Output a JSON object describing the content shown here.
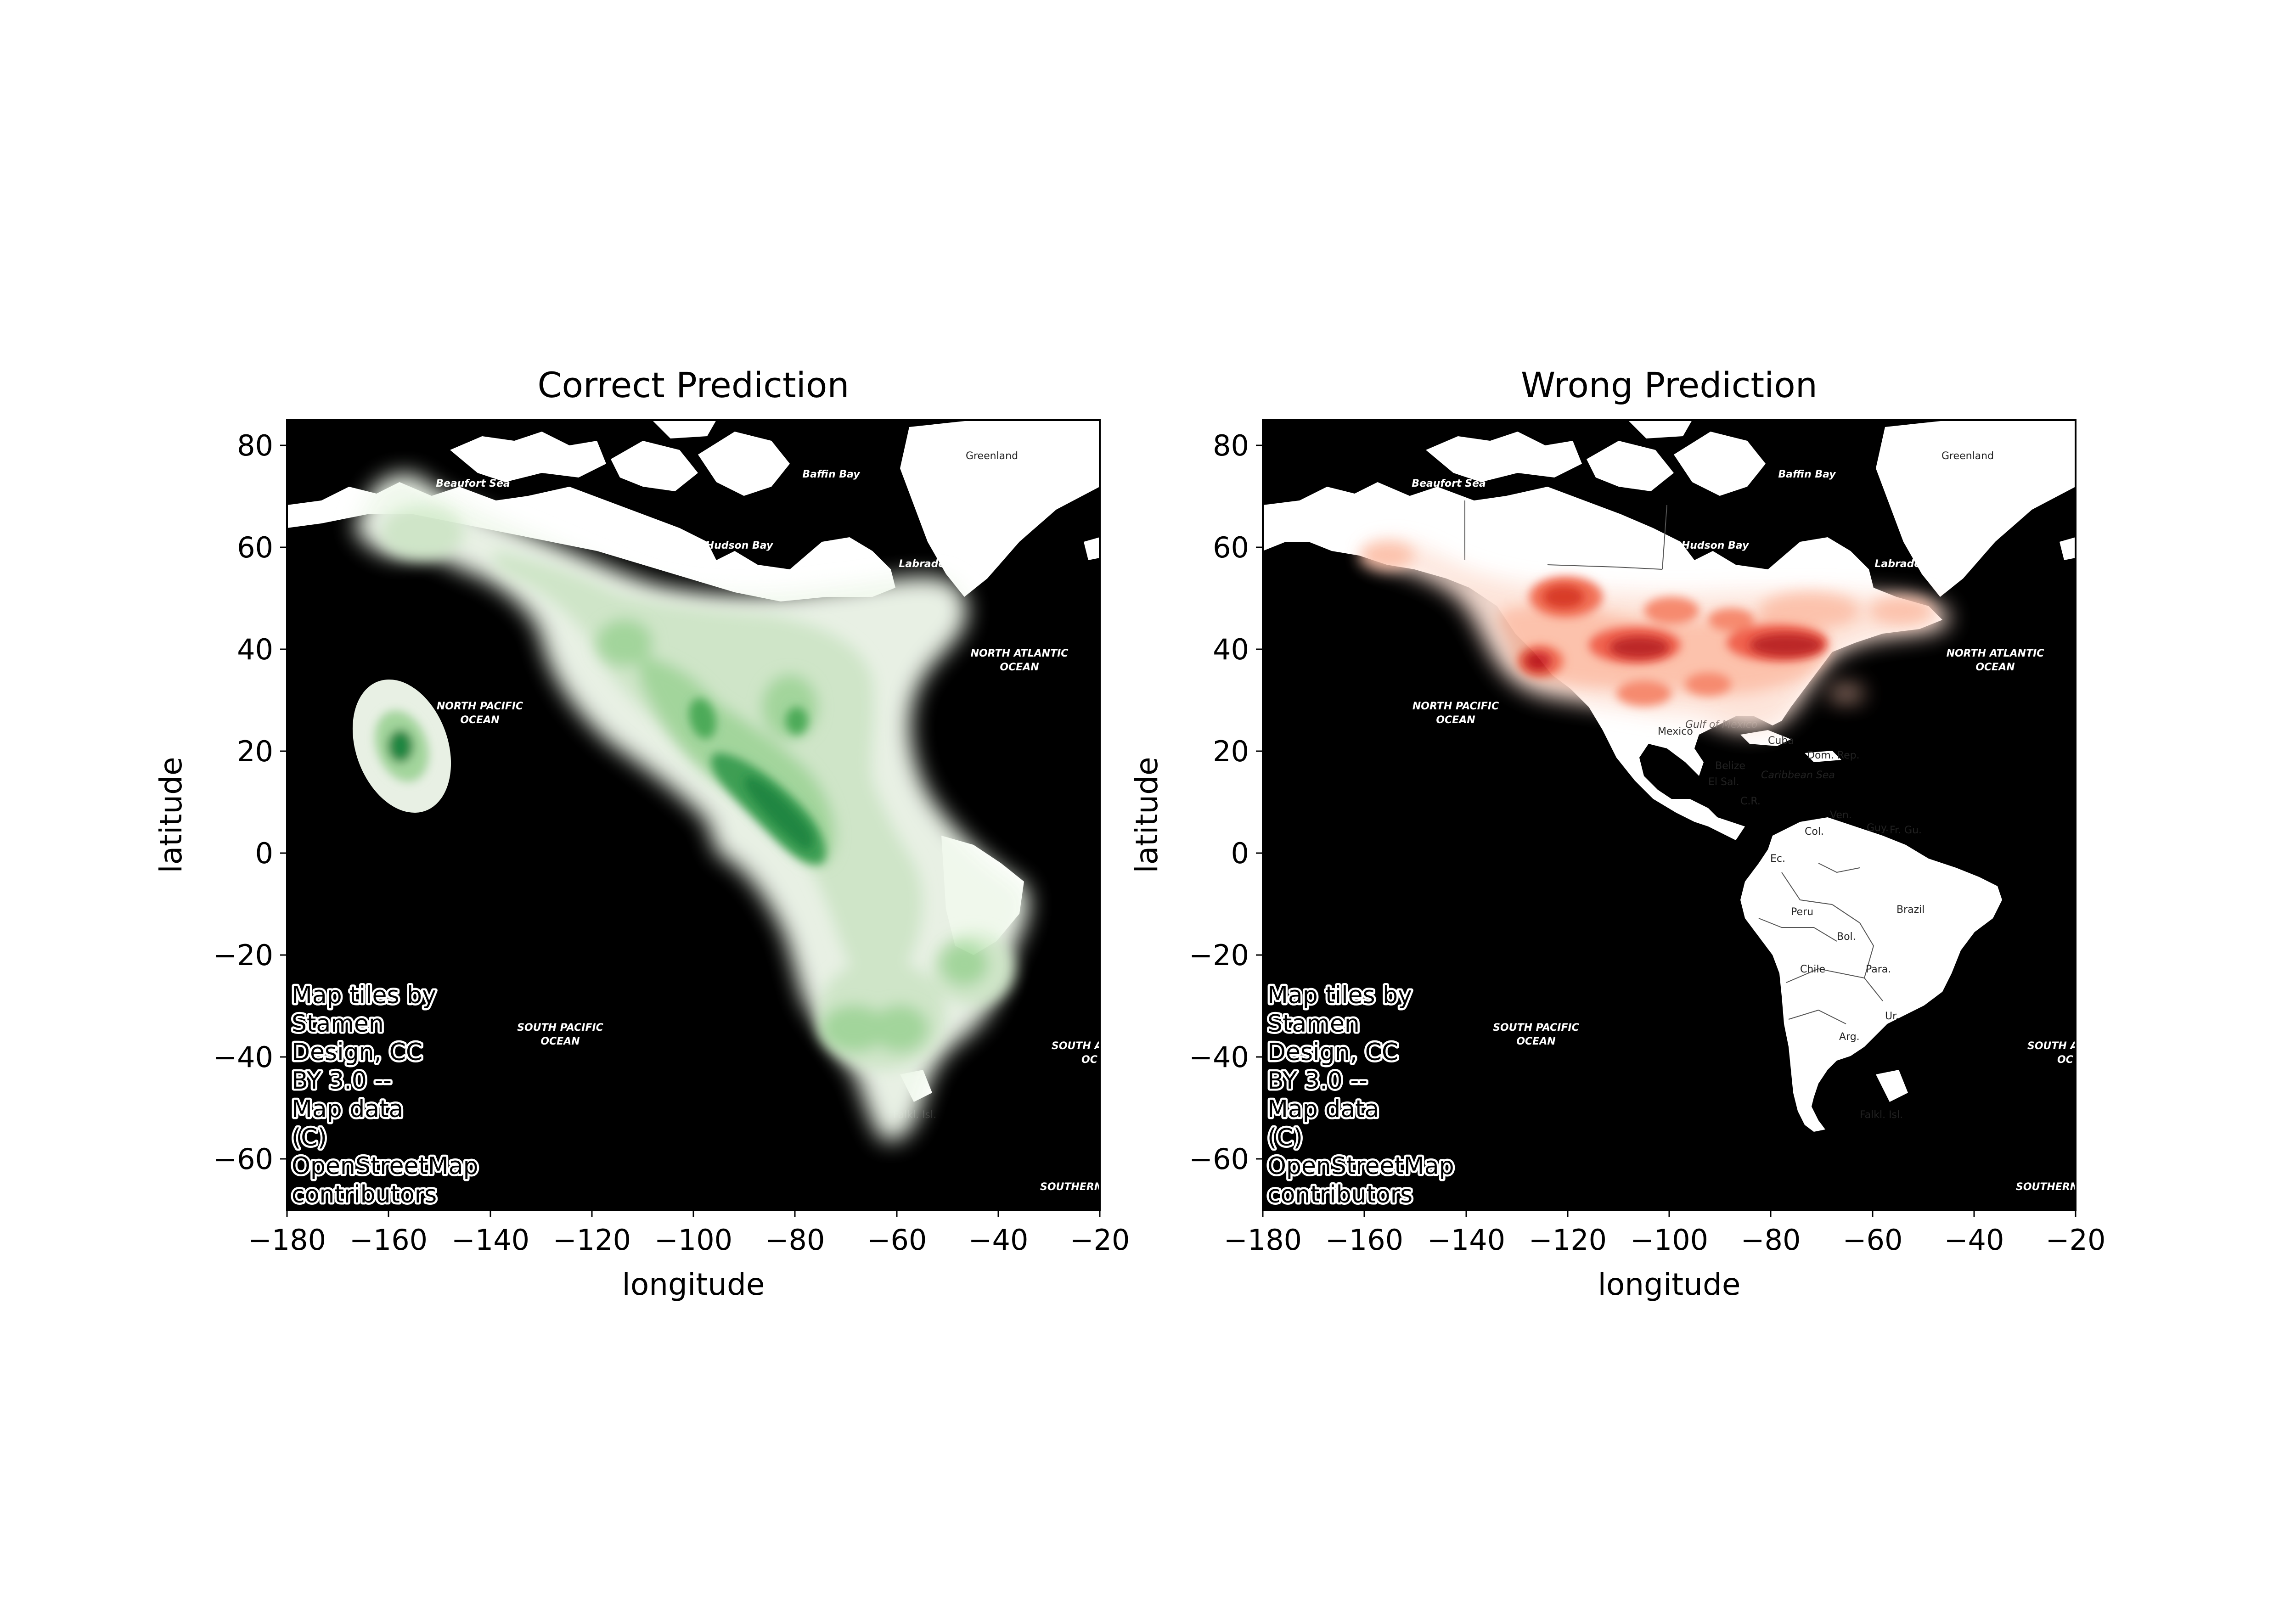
{
  "chart_data": [
    {
      "type": "heatmap",
      "subtype": "kde-density-over-map",
      "title": "Correct Prediction",
      "xlabel": "longitude",
      "ylabel": "latitude",
      "xlim": [
        -180,
        -20
      ],
      "ylim": [
        -70,
        85
      ],
      "xticks": [
        -180,
        -160,
        -140,
        -120,
        -100,
        -80,
        -60,
        -40,
        -20
      ],
      "yticks": [
        -60,
        -40,
        -20,
        0,
        20,
        40,
        60,
        80
      ],
      "xtick_labels": [
        "−180",
        "−160",
        "−140",
        "−120",
        "−100",
        "−80",
        "−60",
        "−40",
        "−20"
      ],
      "ytick_labels": [
        "−60",
        "−40",
        "−20",
        "0",
        "20",
        "40",
        "60",
        "80"
      ],
      "colormap": "Greens",
      "color": "#238b45",
      "grid": false,
      "density_peaks": [
        {
          "lon": -157,
          "lat": 20,
          "level": 0.85
        },
        {
          "lon": -85,
          "lat": 10,
          "level": 1.0
        },
        {
          "lon": -98,
          "lat": 28,
          "level": 0.75
        },
        {
          "lon": -80,
          "lat": 26,
          "level": 0.7
        },
        {
          "lon": -110,
          "lat": 38,
          "level": 0.45
        },
        {
          "lon": -95,
          "lat": 42,
          "level": 0.45
        },
        {
          "lon": -70,
          "lat": 35,
          "level": 0.35
        },
        {
          "lon": -65,
          "lat": -15,
          "level": 0.45
        },
        {
          "lon": -70,
          "lat": -33,
          "level": 0.5
        },
        {
          "lon": -55,
          "lat": -33,
          "level": 0.45
        },
        {
          "lon": -47,
          "lat": -23,
          "level": 0.4
        },
        {
          "lon": -150,
          "lat": 62,
          "level": 0.3
        },
        {
          "lon": -160,
          "lat": 65,
          "level": 0.25
        }
      ],
      "attribution": [
        "Map tiles by",
        "Stamen",
        "Design, CC",
        "BY 3.0 --",
        "Map data",
        "(C)",
        "OpenStreetMap",
        "contributors"
      ]
    },
    {
      "type": "heatmap",
      "subtype": "kde-density-over-map",
      "title": "Wrong Prediction",
      "xlabel": "longitude",
      "ylabel": "latitude",
      "xlim": [
        -180,
        -20
      ],
      "ylim": [
        -70,
        85
      ],
      "xticks": [
        -180,
        -160,
        -140,
        -120,
        -100,
        -80,
        -60,
        -40,
        -20
      ],
      "yticks": [
        -60,
        -40,
        -20,
        0,
        20,
        40,
        60,
        80
      ],
      "xtick_labels": [
        "−180",
        "−160",
        "−140",
        "−120",
        "−100",
        "−80",
        "−60",
        "−40",
        "−20"
      ],
      "ytick_labels": [
        "−60",
        "−40",
        "−20",
        "0",
        "20",
        "40",
        "60",
        "80"
      ],
      "colormap": "Reds",
      "color": "#cb181d",
      "grid": false,
      "density_peaks": [
        {
          "lon": -117,
          "lat": 50,
          "level": 0.7
        },
        {
          "lon": -122,
          "lat": 38,
          "level": 0.85
        },
        {
          "lon": -104,
          "lat": 40,
          "level": 0.95
        },
        {
          "lon": -80,
          "lat": 41,
          "level": 1.0
        },
        {
          "lon": -88,
          "lat": 44,
          "level": 0.6
        },
        {
          "lon": -100,
          "lat": 32,
          "level": 0.5
        },
        {
          "lon": -80,
          "lat": 36,
          "level": 0.55
        },
        {
          "lon": -93,
          "lat": 49,
          "level": 0.45
        },
        {
          "lon": -70,
          "lat": 46,
          "level": 0.45
        },
        {
          "lon": -53,
          "lat": 48,
          "level": 0.35
        },
        {
          "lon": -150,
          "lat": 60,
          "level": 0.3
        },
        {
          "lon": -72,
          "lat": 33,
          "level": 0.25
        }
      ],
      "attribution": [
        "Map tiles by",
        "Stamen",
        "Design, CC",
        "BY 3.0 --",
        "Map data",
        "(C)",
        "OpenStreetMap",
        "contributors"
      ]
    }
  ],
  "map_labels": {
    "beaufort": "Beaufort Sea",
    "baffin": "Baffin Bay",
    "greenland": "Greenland",
    "hudson": "Hudson Bay",
    "labrador": "Labrador Sea",
    "north_pacific": [
      "NORTH PACIFIC",
      "OCEAN"
    ],
    "north_atlantic": [
      "NORTH ATLANTIC",
      "OCEAN"
    ],
    "south_pacific": [
      "SOUTH PACIFIC",
      "OCEAN"
    ],
    "south_atlantic_partial": [
      "SOUTH A",
      "OC"
    ],
    "southern_partial": "SOUTHERN",
    "falkland": "Falkl. Isl.",
    "mexico": "Mexico",
    "gulf": "Gulf of Mexico",
    "cuba": "Cuba",
    "dom_rep": "Dom. Rep.",
    "belize": "Belize",
    "caribbean": "Caribbean  Sea",
    "el_sal": "El Sal.",
    "cr": "C.R.",
    "ven": "Ven.",
    "guy": "Guy.",
    "fr_gu": "Fr. Gu.",
    "col": "Col.",
    "ec": "Ec.",
    "peru": "Peru",
    "brazil": "Brazil",
    "bol": "Bol.",
    "chile": "Chile",
    "para": "Para.",
    "ur": "Ur.",
    "arg": "Arg."
  },
  "colors": {
    "ocean": "#000000",
    "land": "#ffffff",
    "green_scale": [
      "#f2faef",
      "#e0f2db",
      "#c5e8bf",
      "#a1d99b",
      "#74c476",
      "#41ab5d",
      "#238b45"
    ],
    "red_scale": [
      "#fde5dc",
      "#fcc5b0",
      "#fc9f81",
      "#fb7555",
      "#ef4b37",
      "#d22a25",
      "#b21218"
    ]
  }
}
